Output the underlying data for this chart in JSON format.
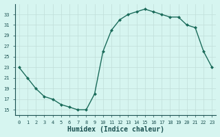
{
  "x": [
    0,
    1,
    2,
    3,
    4,
    5,
    6,
    7,
    8,
    9,
    10,
    11,
    12,
    13,
    14,
    15,
    16,
    17,
    18,
    19,
    20,
    21,
    22,
    23
  ],
  "y": [
    23,
    21,
    19,
    17.5,
    17,
    16,
    15.5,
    15,
    15,
    18,
    26,
    30,
    32,
    33,
    33.5,
    34,
    33.5,
    33,
    32.5,
    32.5,
    31,
    30.5,
    26,
    23
  ],
  "xlabel": "Humidex (Indice chaleur)",
  "ylim": [
    14,
    35
  ],
  "xlim": [
    -0.5,
    23.5
  ],
  "yticks": [
    15,
    17,
    19,
    21,
    23,
    25,
    27,
    29,
    31,
    33
  ],
  "xticks": [
    0,
    1,
    2,
    3,
    4,
    5,
    6,
    7,
    8,
    9,
    10,
    11,
    12,
    13,
    14,
    15,
    16,
    17,
    18,
    19,
    20,
    21,
    22,
    23
  ],
  "line_color": "#1a6b5a",
  "marker": "D",
  "marker_size": 2,
  "bg_color": "#d6f5f0",
  "grid_color": "#c0ddd8",
  "axis_bg": "#d6f5f0",
  "tick_color": "#1a5050",
  "label_color": "#1a5050",
  "xlabel_fontsize": 7,
  "tick_fontsize": 5,
  "linewidth": 1.0
}
